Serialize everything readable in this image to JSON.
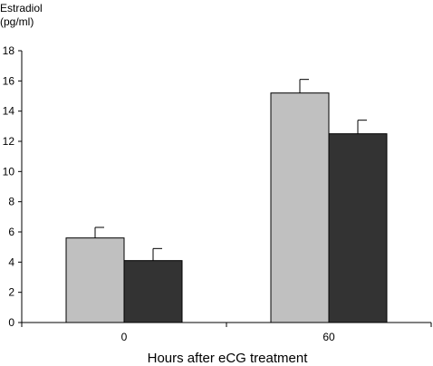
{
  "chart_data": {
    "type": "bar",
    "ylabel_line1": "Estradiol",
    "ylabel_line2": "(pg/ml)",
    "xlabel": "Hours after eCG treatment",
    "categories": [
      "0",
      "60"
    ],
    "series": [
      {
        "values": [
          5.6,
          15.2
        ],
        "errors": [
          0.7,
          0.9
        ],
        "color": "#c0c0c0"
      },
      {
        "values": [
          4.1,
          12.5
        ],
        "errors": [
          0.8,
          0.9
        ],
        "color": "#333333"
      }
    ],
    "ylim": [
      0,
      18
    ],
    "yticks": [
      0,
      2,
      4,
      6,
      8,
      10,
      12,
      14,
      16,
      18
    ],
    "grid": false
  }
}
